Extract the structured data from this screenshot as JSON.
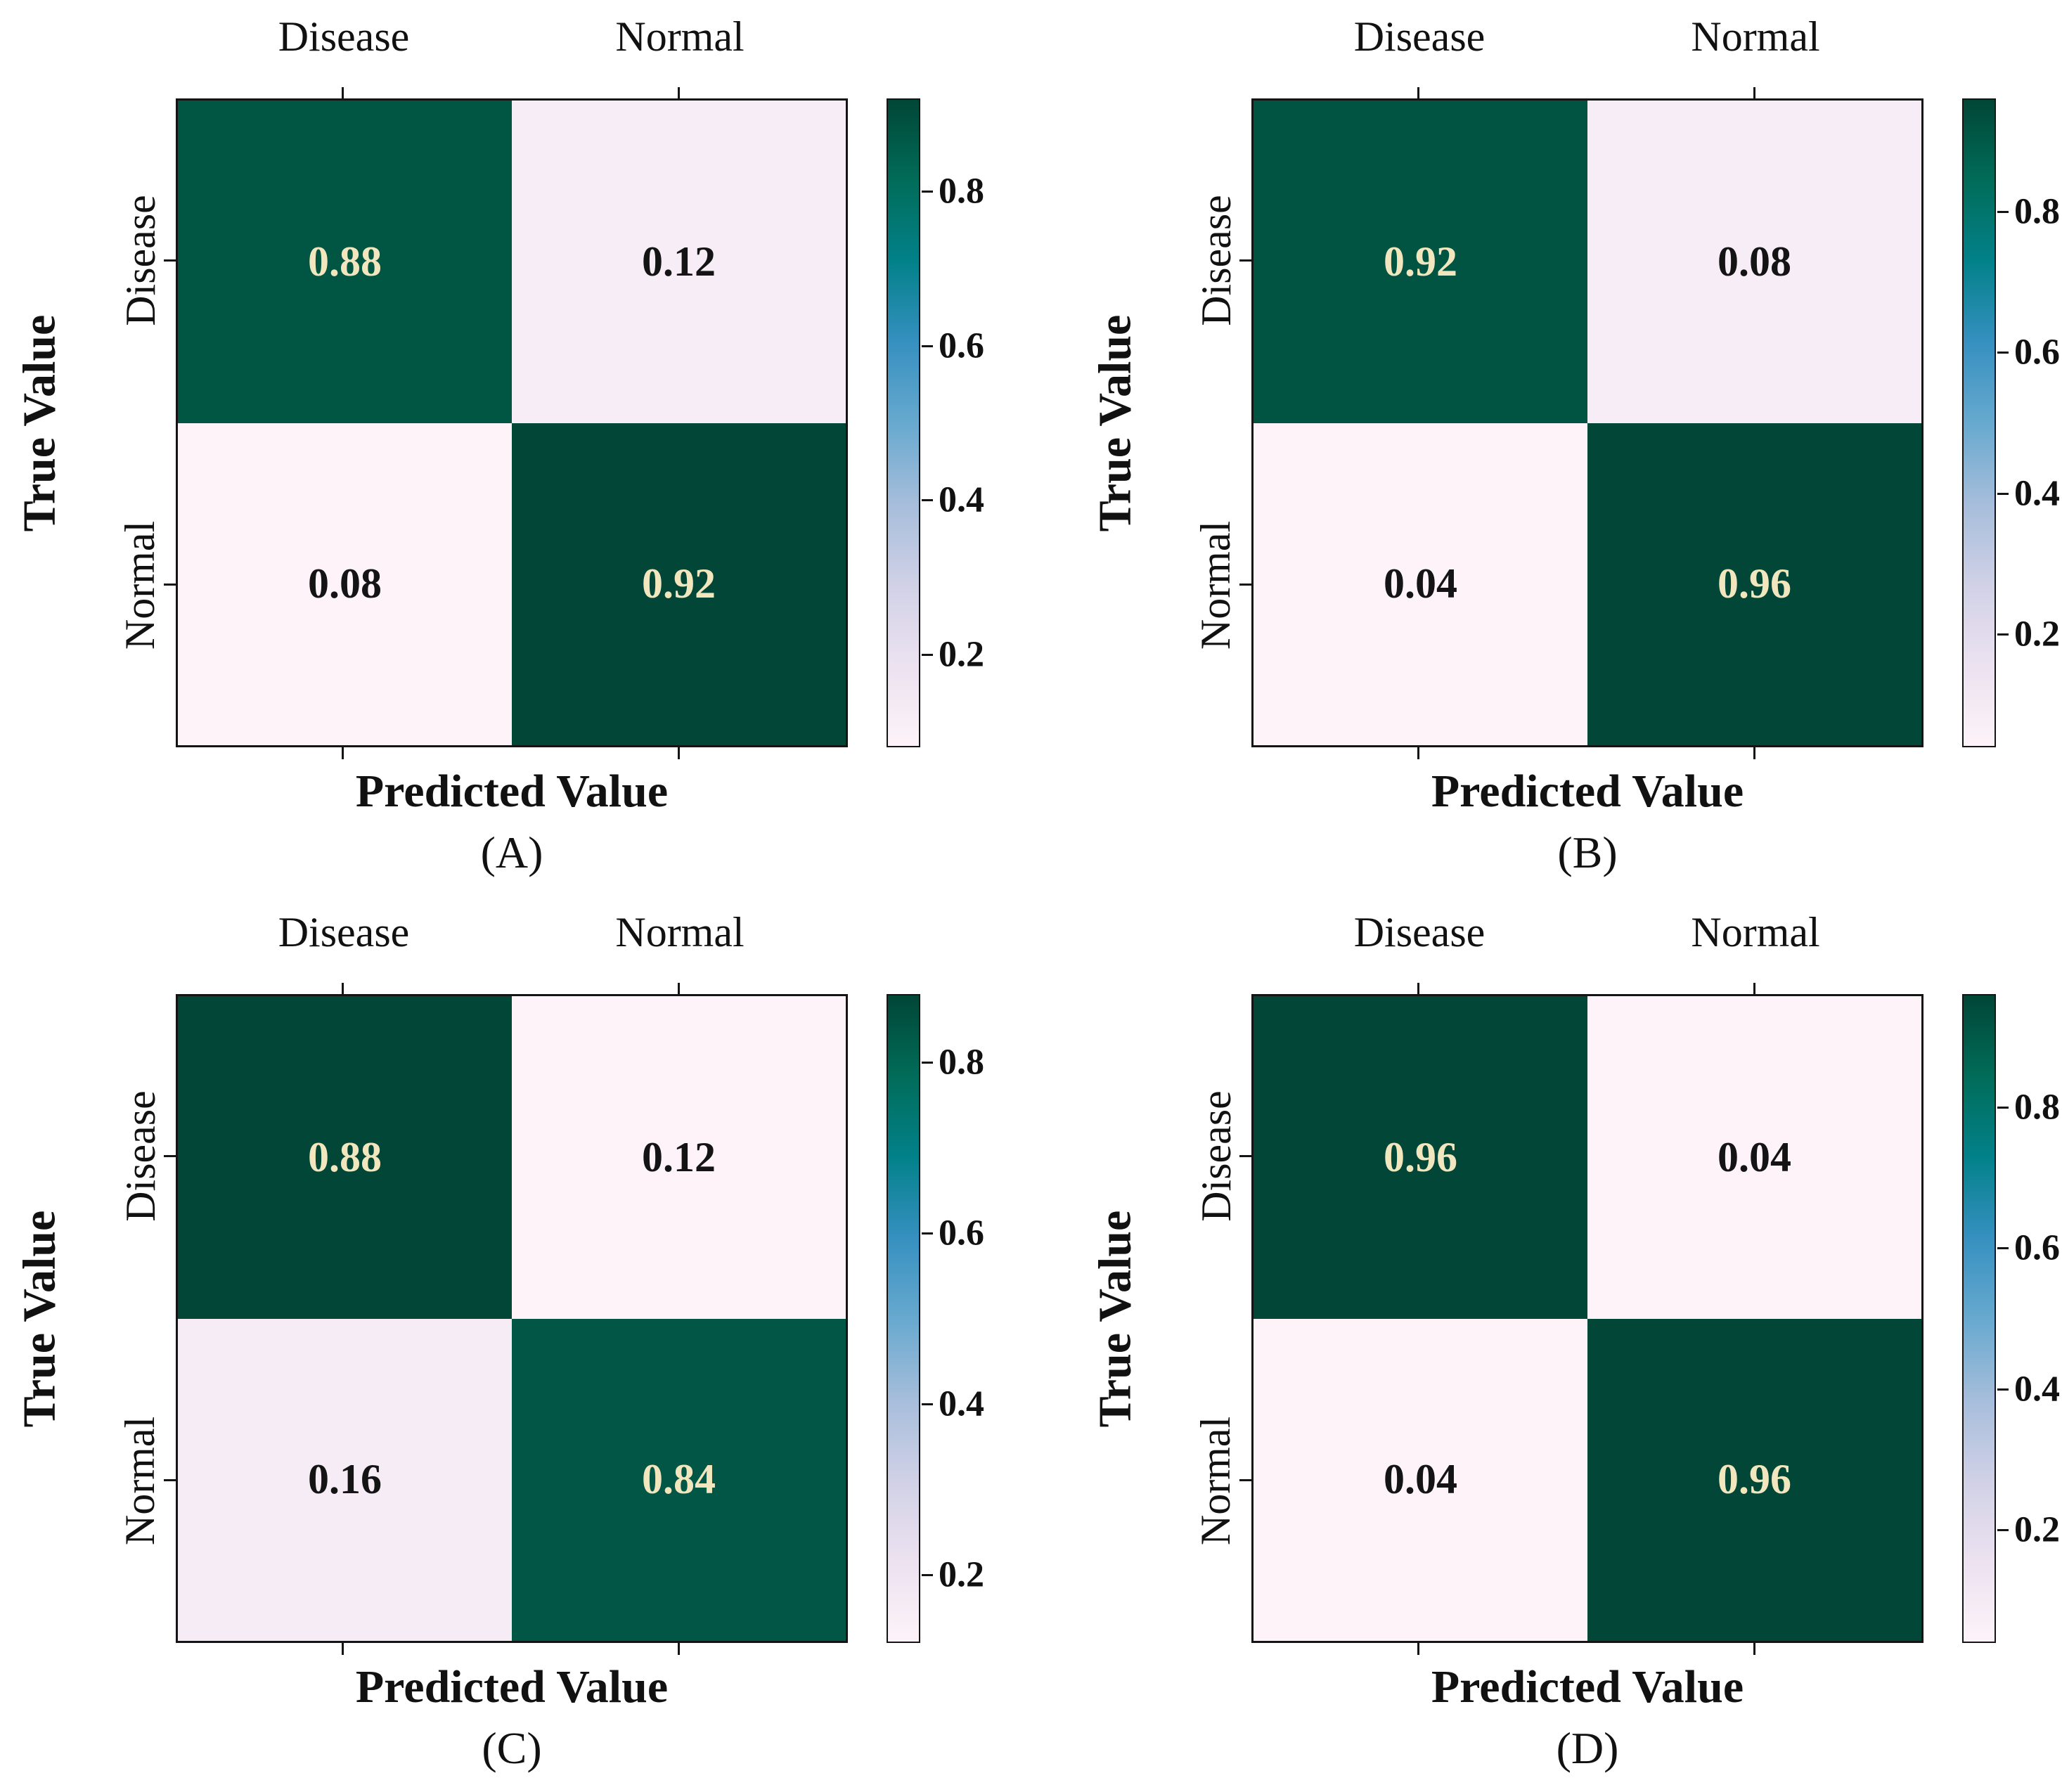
{
  "figure": {
    "background": "#ffffff",
    "xlabel": "Predicted Value",
    "ylabel": "True Value",
    "class_labels": [
      "Disease",
      "Normal"
    ]
  },
  "colors": {
    "axis_text": "#111111",
    "cell_text_on_dark": "#f1e6bd",
    "cell_text_on_light": "#141414",
    "heatmap_border": "#141414",
    "colormap_name": "PuBuGn",
    "colormap_stops": [
      "#fdf3f9",
      "#ece2f0",
      "#d0d1e6",
      "#a6bddb",
      "#67a9cf",
      "#3690c0",
      "#02818a",
      "#016c59",
      "#014636"
    ]
  },
  "panels": [
    {
      "caption": "(A)",
      "xlabel": "Predicted Value",
      "ylabel": "True Value",
      "col_labels": [
        "Disease",
        "Normal"
      ],
      "row_labels": [
        "Disease",
        "Normal"
      ],
      "vmin": 0.08,
      "vmax": 0.92,
      "cells": [
        {
          "row": "Disease",
          "col": "Disease",
          "label": "0.88",
          "bg": "#015543",
          "fg": "#f1e6bd"
        },
        {
          "row": "Disease",
          "col": "Normal",
          "label": "0.12",
          "bg": "#f6edf6",
          "fg": "#141414"
        },
        {
          "row": "Normal",
          "col": "Disease",
          "label": "0.08",
          "bg": "#fdf3f9",
          "fg": "#141414"
        },
        {
          "row": "Normal",
          "col": "Normal",
          "label": "0.92",
          "bg": "#014636",
          "fg": "#f1e6bd"
        }
      ],
      "colorbar_ticks": [
        {
          "label": "0.8",
          "top": 14.29
        },
        {
          "label": "0.6",
          "top": 38.1
        },
        {
          "label": "0.4",
          "top": 61.9
        },
        {
          "label": "0.2",
          "top": 85.71
        }
      ]
    },
    {
      "caption": "(B)",
      "xlabel": "Predicted Value",
      "ylabel": "True Value",
      "col_labels": [
        "Disease",
        "Normal"
      ],
      "row_labels": [
        "Disease",
        "Normal"
      ],
      "vmin": 0.04,
      "vmax": 0.96,
      "cells": [
        {
          "row": "Disease",
          "col": "Disease",
          "label": "0.92",
          "bg": "#015342",
          "fg": "#f1e6bd"
        },
        {
          "row": "Disease",
          "col": "Normal",
          "label": "0.08",
          "bg": "#f7edf6",
          "fg": "#141414"
        },
        {
          "row": "Normal",
          "col": "Disease",
          "label": "0.04",
          "bg": "#fdf3f9",
          "fg": "#141414"
        },
        {
          "row": "Normal",
          "col": "Normal",
          "label": "0.96",
          "bg": "#014636",
          "fg": "#f1e6bd"
        }
      ],
      "colorbar_ticks": [
        {
          "label": "0.8",
          "top": 17.39
        },
        {
          "label": "0.6",
          "top": 39.13
        },
        {
          "label": "0.4",
          "top": 60.87
        },
        {
          "label": "0.2",
          "top": 82.61
        }
      ]
    },
    {
      "caption": "(C)",
      "xlabel": "Predicted Value",
      "ylabel": "True Value",
      "col_labels": [
        "Disease",
        "Normal"
      ],
      "row_labels": [
        "Disease",
        "Normal"
      ],
      "vmin": 0.12,
      "vmax": 0.88,
      "cells": [
        {
          "row": "Disease",
          "col": "Disease",
          "label": "0.88",
          "bg": "#014636",
          "fg": "#f1e6bd"
        },
        {
          "row": "Disease",
          "col": "Normal",
          "label": "0.12",
          "bg": "#fdf3f9",
          "fg": "#141414"
        },
        {
          "row": "Normal",
          "col": "Disease",
          "label": "0.16",
          "bg": "#f6ecf5",
          "fg": "#141414"
        },
        {
          "row": "Normal",
          "col": "Normal",
          "label": "0.84",
          "bg": "#015645",
          "fg": "#f1e6bd"
        }
      ],
      "colorbar_ticks": [
        {
          "label": "0.8",
          "top": 10.53
        },
        {
          "label": "0.6",
          "top": 36.84
        },
        {
          "label": "0.4",
          "top": 63.16
        },
        {
          "label": "0.2",
          "top": 89.47
        }
      ]
    },
    {
      "caption": "(D)",
      "xlabel": "Predicted Value",
      "ylabel": "True Value",
      "col_labels": [
        "Disease",
        "Normal"
      ],
      "row_labels": [
        "Disease",
        "Normal"
      ],
      "vmin": 0.04,
      "vmax": 0.96,
      "cells": [
        {
          "row": "Disease",
          "col": "Disease",
          "label": "0.96",
          "bg": "#014636",
          "fg": "#f1e6bd"
        },
        {
          "row": "Disease",
          "col": "Normal",
          "label": "0.04",
          "bg": "#fdf3f9",
          "fg": "#141414"
        },
        {
          "row": "Normal",
          "col": "Disease",
          "label": "0.04",
          "bg": "#fdf3f9",
          "fg": "#141414"
        },
        {
          "row": "Normal",
          "col": "Normal",
          "label": "0.96",
          "bg": "#014636",
          "fg": "#f1e6bd"
        }
      ],
      "colorbar_ticks": [
        {
          "label": "0.8",
          "top": 17.39
        },
        {
          "label": "0.6",
          "top": 39.13
        },
        {
          "label": "0.4",
          "top": 60.87
        },
        {
          "label": "0.2",
          "top": 82.61
        }
      ]
    }
  ],
  "chart_data": [
    {
      "type": "heatmap",
      "title": "(A)",
      "xlabel": "Predicted Value",
      "ylabel": "True Value",
      "x_categories": [
        "Disease",
        "Normal"
      ],
      "y_categories": [
        "Disease",
        "Normal"
      ],
      "values": [
        [
          0.88,
          0.12
        ],
        [
          0.08,
          0.92
        ]
      ],
      "vmin": 0.08,
      "vmax": 0.92,
      "colormap": "PuBuGn",
      "colorbar_ticks": [
        0.2,
        0.4,
        0.6,
        0.8
      ],
      "legend_position": "right",
      "grid": false
    },
    {
      "type": "heatmap",
      "title": "(B)",
      "xlabel": "Predicted Value",
      "ylabel": "True Value",
      "x_categories": [
        "Disease",
        "Normal"
      ],
      "y_categories": [
        "Disease",
        "Normal"
      ],
      "values": [
        [
          0.92,
          0.08
        ],
        [
          0.04,
          0.96
        ]
      ],
      "vmin": 0.04,
      "vmax": 0.96,
      "colormap": "PuBuGn",
      "colorbar_ticks": [
        0.2,
        0.4,
        0.6,
        0.8
      ],
      "legend_position": "right",
      "grid": false
    },
    {
      "type": "heatmap",
      "title": "(C)",
      "xlabel": "Predicted Value",
      "ylabel": "True Value",
      "x_categories": [
        "Disease",
        "Normal"
      ],
      "y_categories": [
        "Disease",
        "Normal"
      ],
      "values": [
        [
          0.88,
          0.12
        ],
        [
          0.16,
          0.84
        ]
      ],
      "vmin": 0.12,
      "vmax": 0.88,
      "colormap": "PuBuGn",
      "colorbar_ticks": [
        0.2,
        0.4,
        0.6,
        0.8
      ],
      "legend_position": "right",
      "grid": false
    },
    {
      "type": "heatmap",
      "title": "(D)",
      "xlabel": "Predicted Value",
      "ylabel": "True Value",
      "x_categories": [
        "Disease",
        "Normal"
      ],
      "y_categories": [
        "Disease",
        "Normal"
      ],
      "values": [
        [
          0.96,
          0.04
        ],
        [
          0.04,
          0.96
        ]
      ],
      "vmin": 0.04,
      "vmax": 0.96,
      "colormap": "PuBuGn",
      "colorbar_ticks": [
        0.2,
        0.4,
        0.6,
        0.8
      ],
      "legend_position": "right",
      "grid": false
    }
  ]
}
